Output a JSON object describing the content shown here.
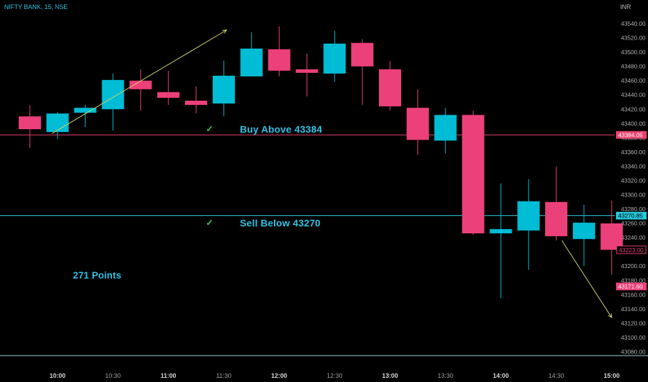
{
  "header": {
    "symbol": "NIFTY BANK, 15, NSE",
    "currency": "INR"
  },
  "annotations": {
    "buy_label": "Buy Above 43384",
    "sell_label": "Sell Below 43270",
    "points_label": "271 Points",
    "check_icon": "checkmark-icon"
  },
  "colors": {
    "bg": "#000000",
    "up": "#00bcd4",
    "down": "#ec407a",
    "buy_line": "#e8436f",
    "sell_line": "#26c6da",
    "axis_text": "#b0b0b0",
    "arrow": "#d4d46a",
    "check": "#3fbf4f"
  },
  "chart_data": {
    "type": "candlestick",
    "title": "NIFTY BANK, 15, NSE",
    "ylabel": "INR",
    "ylim": [
      43070,
      43555
    ],
    "y_ticks": [
      43080,
      43100,
      43120,
      43140,
      43160,
      43180,
      43200,
      43220,
      43240,
      43260,
      43280,
      43300,
      43320,
      43340,
      43360,
      43380,
      43400,
      43420,
      43440,
      43460,
      43480,
      43500,
      43520,
      43540
    ],
    "x_labels": [
      {
        "label": "10:00",
        "slot": 1.5,
        "bold": true
      },
      {
        "label": "10:30",
        "slot": 3.5,
        "bold": false
      },
      {
        "label": "11:00",
        "slot": 5.5,
        "bold": true
      },
      {
        "label": "11:30",
        "slot": 7.5,
        "bold": false
      },
      {
        "label": "12:00",
        "slot": 9.5,
        "bold": true
      },
      {
        "label": "12:30",
        "slot": 11.5,
        "bold": false
      },
      {
        "label": "13:00",
        "slot": 13.5,
        "bold": true
      },
      {
        "label": "13:30",
        "slot": 15.5,
        "bold": false
      },
      {
        "label": "14:00",
        "slot": 17.5,
        "bold": true
      },
      {
        "label": "14:30",
        "slot": 19.5,
        "bold": false
      },
      {
        "label": "15:00",
        "slot": 21.5,
        "bold": true
      }
    ],
    "candles": [
      {
        "o": 43410,
        "h": 43426,
        "l": 43366,
        "c": 43392
      },
      {
        "o": 43388,
        "h": 43416,
        "l": 43378,
        "c": 43414
      },
      {
        "o": 43415,
        "h": 43426,
        "l": 43395,
        "c": 43422
      },
      {
        "o": 43420,
        "h": 43470,
        "l": 43390,
        "c": 43461
      },
      {
        "o": 43460,
        "h": 43476,
        "l": 43418,
        "c": 43448
      },
      {
        "o": 43444,
        "h": 43474,
        "l": 43426,
        "c": 43436
      },
      {
        "o": 43432,
        "h": 43452,
        "l": 43414,
        "c": 43426
      },
      {
        "o": 43428,
        "h": 43488,
        "l": 43410,
        "c": 43467
      },
      {
        "o": 43466,
        "h": 43528,
        "l": 43466,
        "c": 43505
      },
      {
        "o": 43504,
        "h": 43536,
        "l": 43466,
        "c": 43474
      },
      {
        "o": 43476,
        "h": 43498,
        "l": 43438,
        "c": 43471
      },
      {
        "o": 43470,
        "h": 43530,
        "l": 43458,
        "c": 43512
      },
      {
        "o": 43513,
        "h": 43518,
        "l": 43426,
        "c": 43480
      },
      {
        "o": 43476,
        "h": 43488,
        "l": 43418,
        "c": 43424
      },
      {
        "o": 43422,
        "h": 43448,
        "l": 43356,
        "c": 43377
      },
      {
        "o": 43376,
        "h": 43422,
        "l": 43358,
        "c": 43412
      },
      {
        "o": 43412,
        "h": 43418,
        "l": 43244,
        "c": 43246
      },
      {
        "o": 43246,
        "h": 43316,
        "l": 43155,
        "c": 43252
      },
      {
        "o": 43250,
        "h": 43322,
        "l": 43195,
        "c": 43291
      },
      {
        "o": 43290,
        "h": 43340,
        "l": 43236,
        "c": 43242
      },
      {
        "o": 43238,
        "h": 43286,
        "l": 43200,
        "c": 43261
      },
      {
        "o": 43260,
        "h": 43292,
        "l": 43188,
        "c": 43223
      }
    ],
    "levels": [
      {
        "price": 43384.05,
        "label": "43384.05",
        "style": "buy"
      },
      {
        "price": 43270.85,
        "label": "43270.85",
        "style": "sell"
      }
    ],
    "price_tags": [
      {
        "price": 43223.0,
        "label": "43223.00",
        "style": "outline"
      },
      {
        "price": 43171.6,
        "label": "43171.60",
        "style": "filled"
      }
    ],
    "arrows": [
      {
        "from_slot": 1.3,
        "from_price": 43386,
        "to_slot": 7.6,
        "to_price": 43531
      },
      {
        "from_slot": 19.7,
        "from_price": 43236,
        "to_slot": 21.5,
        "to_price": 43128
      }
    ]
  }
}
